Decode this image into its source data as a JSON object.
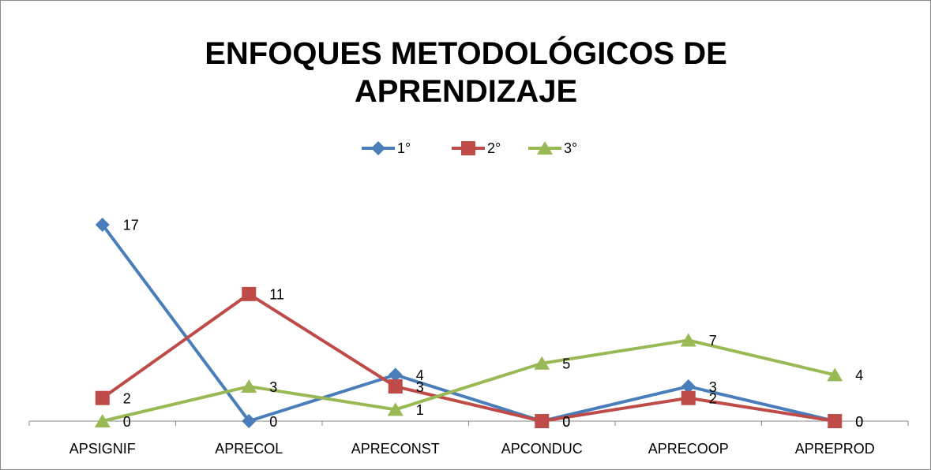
{
  "chart_data": {
    "type": "line",
    "title": "ENFOQUES METODOLÓGICOS DE APRENDIZAJE",
    "categories": [
      "APSIGNIF",
      "APRECOL",
      "APRECONST",
      "APCONDUC",
      "APRECOOP",
      "APREPROD"
    ],
    "series": [
      {
        "name": "1°",
        "color": "#4a7ebb",
        "marker": "diamond",
        "values": [
          17,
          0,
          4,
          0,
          3,
          0
        ]
      },
      {
        "name": "2°",
        "color": "#be4b48",
        "marker": "square",
        "values": [
          2,
          11,
          3,
          0,
          2,
          0
        ]
      },
      {
        "name": "3°",
        "color": "#98b954",
        "marker": "triangle",
        "values": [
          0,
          3,
          1,
          5,
          7,
          4
        ]
      }
    ],
    "ylim": [
      0,
      18
    ],
    "legend": "top",
    "data_labels": true
  }
}
